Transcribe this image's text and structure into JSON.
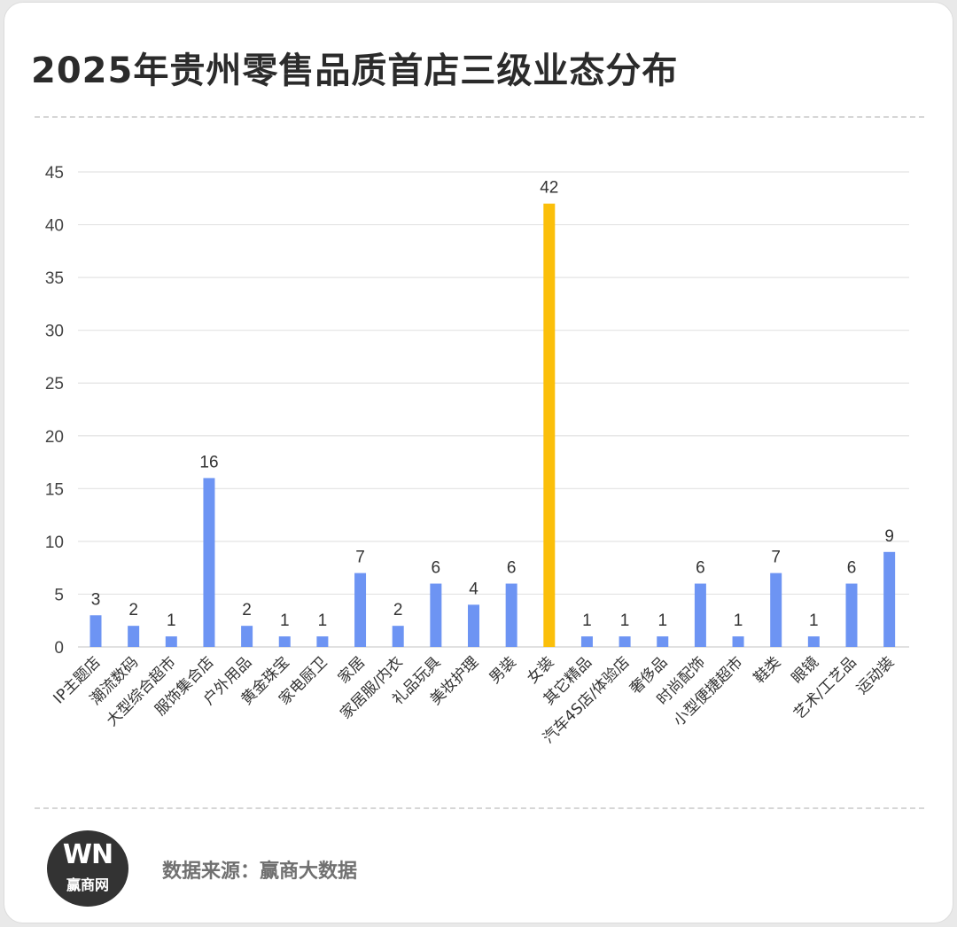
{
  "title": "2025年贵州零售品质首店三级业态分布",
  "source": "数据来源：赢商大数据",
  "logo": {
    "mark": "WN",
    "text": "赢商网"
  },
  "colors": {
    "bar": "#6d94f3",
    "highlight": "#fbbf0a",
    "grid": "#e3e3e3",
    "text": "#333333"
  },
  "chart_data": {
    "type": "bar",
    "title": "2025年贵州零售品质首店三级业态分布",
    "categories": [
      "IP主题店",
      "潮流数码",
      "大型综合超市",
      "服饰集合店",
      "户外用品",
      "黄金珠宝",
      "家电厨卫",
      "家居",
      "家居服/内衣",
      "礼品玩具",
      "美妆护理",
      "男装",
      "女装",
      "其它精品",
      "汽车4S店/体验店",
      "奢侈品",
      "时尚配饰",
      "小型便捷超市",
      "鞋类",
      "眼镜",
      "艺术/工艺品",
      "运动装"
    ],
    "values": [
      3,
      2,
      1,
      16,
      2,
      1,
      1,
      7,
      2,
      6,
      4,
      6,
      42,
      1,
      1,
      1,
      6,
      1,
      7,
      1,
      6,
      9
    ],
    "highlight_index": 12,
    "yticks": [
      0,
      5,
      10,
      15,
      20,
      25,
      30,
      35,
      40,
      45
    ],
    "ylim": [
      0,
      45
    ],
    "xlabel": "",
    "ylabel": "",
    "grid": true,
    "data_labels": true,
    "legend": "none"
  }
}
